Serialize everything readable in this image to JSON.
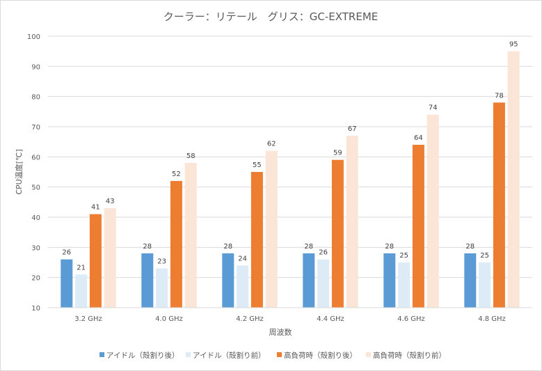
{
  "chart_data": {
    "type": "bar",
    "title": "クーラー：リテール　グリス：GC-EXTREME",
    "xlabel": "周波数",
    "ylabel": "CPU温度[℃]",
    "ylim": [
      10,
      100
    ],
    "yticks": [
      10,
      20,
      30,
      40,
      50,
      60,
      70,
      80,
      90,
      100
    ],
    "grid": true,
    "legend_position": "bottom",
    "categories": [
      "3.2 GHz",
      "4.0 GHz",
      "4.2 GHz",
      "4.4 GHz",
      "4.6 GHz",
      "4.8 GHz"
    ],
    "series": [
      {
        "name": "アイドル（殻割り後）",
        "color": "#5b9bd5",
        "values": [
          26,
          28,
          28,
          28,
          28,
          28
        ]
      },
      {
        "name": "アイドル（殻割り前）",
        "color": "#ddebf7",
        "values": [
          21,
          23,
          24,
          26,
          25,
          25
        ]
      },
      {
        "name": "高負荷時（殻割り後）",
        "color": "#ed7d31",
        "values": [
          41,
          52,
          55,
          59,
          64,
          78
        ]
      },
      {
        "name": "高負荷時（殻割り前）",
        "color": "#fbe5d6",
        "values": [
          43,
          58,
          62,
          67,
          74,
          95
        ]
      }
    ]
  }
}
